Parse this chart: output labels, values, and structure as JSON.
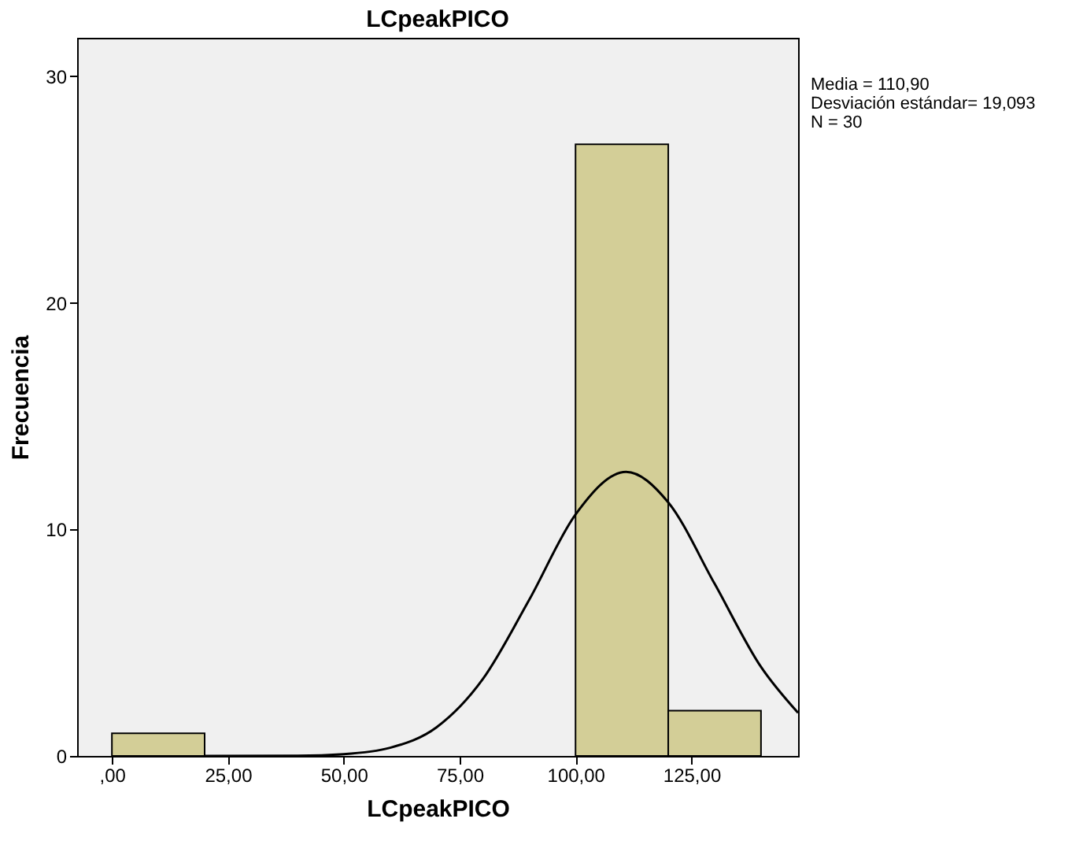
{
  "chart_data": {
    "type": "histogram",
    "title": "LCpeakPICO",
    "xlabel": "LCpeakPICO",
    "ylabel": "Frecuencia",
    "bins": [
      0,
      20,
      40,
      60,
      80,
      100,
      120,
      140
    ],
    "values": [
      1,
      0,
      0,
      0,
      0,
      27,
      2
    ],
    "color": "#d3ce97",
    "series": [
      {
        "type": "line",
        "color": "#000000",
        "x": [
          20,
          40,
          50,
          60,
          70,
          80,
          90,
          100,
          110.9,
          120,
          130,
          140,
          148
        ],
        "values": [
          0,
          0.01,
          0.08,
          0.36,
          1.26,
          3.39,
          6.89,
          10.66,
          12.54,
          11.19,
          7.6,
          3.93,
          1.9
        ]
      }
    ],
    "xlim": [
      -7.5,
      148
    ],
    "ylim": [
      0,
      31.7
    ],
    "xticks": [
      {
        "value": 0,
        "label": ",00"
      },
      {
        "value": 25,
        "label": "25,00"
      },
      {
        "value": 50,
        "label": "50,00"
      },
      {
        "value": 75,
        "label": "75,00"
      },
      {
        "value": 100,
        "label": "100,00"
      },
      {
        "value": 125,
        "label": "125,00"
      }
    ],
    "yticks": [
      0,
      10,
      20,
      30
    ],
    "grid": false,
    "annotations": [
      "Media = 110,90",
      "Desviación estándar= 19,093",
      "N = 30"
    ]
  }
}
